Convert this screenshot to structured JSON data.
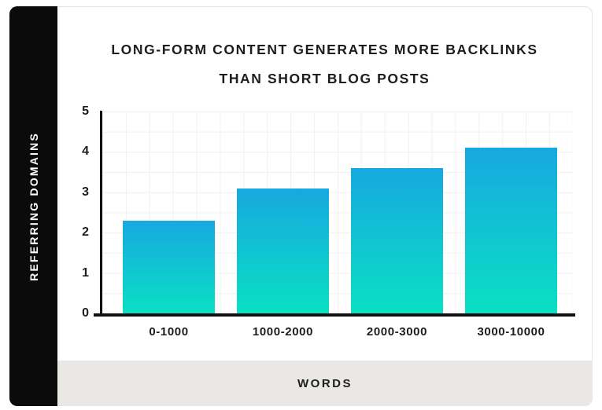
{
  "card": {
    "title_line1": "LONG-FORM CONTENT GENERATES MORE BACKLINKS",
    "title_line2": "THAN SHORT BLOG POSTS",
    "y_axis_title": "REFERRING DOMAINS",
    "x_axis_title": "WORDS"
  },
  "colors": {
    "bar_top": "#17a8e0",
    "bar_bottom": "#0ae0c3",
    "sidebar_bg": "#0b0b0b",
    "footer_bg": "#e9e8e5",
    "grid_line": "#f1f1f1",
    "axis_color": "#111111",
    "text_color": "#1d1d1d",
    "card_border": "#e4e4e4"
  },
  "chart_data": {
    "type": "bar",
    "title": "LONG-FORM CONTENT GENERATES MORE BACKLINKS THAN SHORT BLOG POSTS",
    "categories": [
      "0-1000",
      "1000-2000",
      "2000-3000",
      "3000-10000"
    ],
    "values": [
      2.3,
      3.1,
      3.6,
      4.1
    ],
    "xlabel": "WORDS",
    "ylabel": "REFERRING DOMAINS",
    "ylim": [
      0,
      5
    ],
    "yticks": [
      0,
      1,
      2,
      3,
      4,
      5
    ],
    "grid": true,
    "legend": false,
    "bar_gradient": [
      "#17a8e0",
      "#0ae0c3"
    ]
  }
}
